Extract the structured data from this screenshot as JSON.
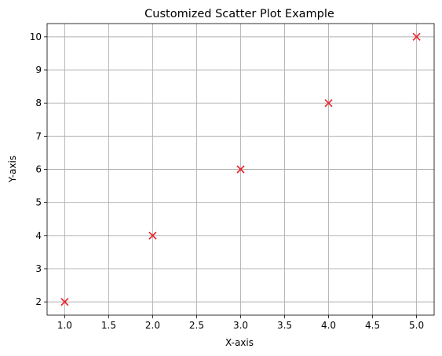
{
  "chart_data": {
    "type": "scatter",
    "title": "Customized Scatter Plot Example",
    "xlabel": "X-axis",
    "ylabel": "Y-axis",
    "xlim": [
      0.8,
      5.2
    ],
    "ylim": [
      1.6,
      10.4
    ],
    "xticks": [
      1.0,
      1.5,
      2.0,
      2.5,
      3.0,
      3.5,
      4.0,
      4.5,
      5.0
    ],
    "xtick_labels": [
      "1.0",
      "1.5",
      "2.0",
      "2.5",
      "3.0",
      "3.5",
      "4.0",
      "4.5",
      "5.0"
    ],
    "yticks": [
      2,
      3,
      4,
      5,
      6,
      7,
      8,
      9,
      10
    ],
    "ytick_labels": [
      "2",
      "3",
      "4",
      "5",
      "6",
      "7",
      "8",
      "9",
      "10"
    ],
    "grid": true,
    "marker": "x",
    "marker_color": "#e8222a",
    "grid_color": "#b0b0b0",
    "series": [
      {
        "x": [
          1,
          2,
          3,
          4,
          5
        ],
        "y": [
          2,
          4,
          6,
          8,
          10
        ]
      }
    ]
  }
}
